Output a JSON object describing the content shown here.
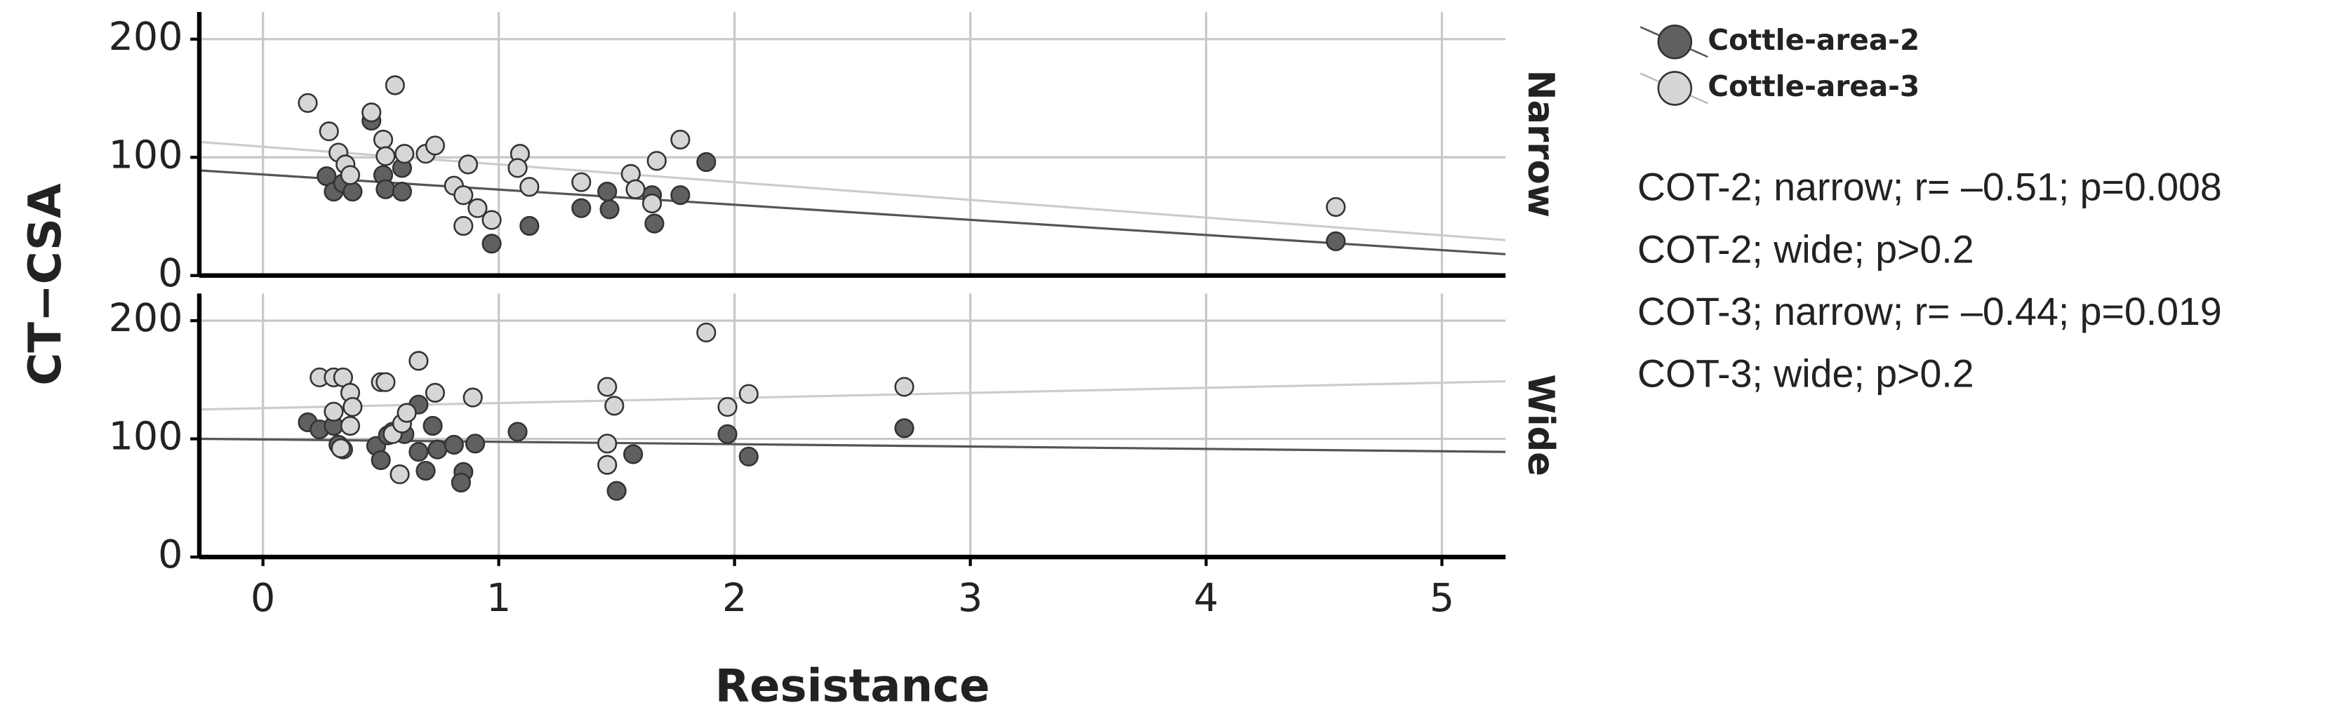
{
  "chart_data": {
    "type": "scatter",
    "xlabel": "Resistance",
    "ylabel": "CT−CSA",
    "facets": [
      "Narrow",
      "Wide"
    ],
    "xlim": [
      -0.27,
      5.27
    ],
    "xticks": [
      0,
      1,
      2,
      3,
      4,
      5
    ],
    "ylim": [
      0,
      223
    ],
    "yticks": [
      0,
      100,
      200
    ],
    "grid": true,
    "series": [
      {
        "name": "Cottle-area-2",
        "color": "#606060",
        "line_color": "#555555",
        "x": [
          [
            0.27,
            0.3,
            0.34,
            0.38,
            0.46,
            0.51,
            0.52,
            0.59,
            0.59,
            0.97,
            1.13,
            1.35,
            1.46,
            1.47,
            1.65,
            1.66,
            1.77,
            1.88,
            4.55
          ],
          [
            0.19,
            0.24,
            0.3,
            0.32,
            0.34,
            0.48,
            0.5,
            0.53,
            0.55,
            0.6,
            0.66,
            0.66,
            0.69,
            0.72,
            0.74,
            0.81,
            0.85,
            0.84,
            0.9,
            1.08,
            1.5,
            1.57,
            1.97,
            2.06,
            2.72
          ]
        ],
        "y": [
          [
            84,
            71,
            78,
            71,
            131,
            85,
            73,
            71,
            91,
            27,
            42,
            57,
            71,
            56,
            68,
            44,
            68,
            96,
            29
          ],
          [
            114,
            108,
            111,
            95,
            91,
            94,
            82,
            103,
            106,
            104,
            89,
            129,
            73,
            111,
            91,
            95,
            72,
            63,
            96,
            106,
            56,
            87,
            104,
            85,
            109
          ]
        ],
        "fit": [
          {
            "intercept": 85.5,
            "slope": -12.8
          },
          {
            "intercept": 99.5,
            "slope": -2.0
          }
        ]
      },
      {
        "name": "Cottle-area-3",
        "color": "#d6d6d6",
        "line_color": "#cccccc",
        "x": [
          [
            0.19,
            0.28,
            0.32,
            0.35,
            0.37,
            0.46,
            0.51,
            0.52,
            0.56,
            0.6,
            0.69,
            0.73,
            0.81,
            0.85,
            0.87,
            0.85,
            0.91,
            0.97,
            1.09,
            1.08,
            1.13,
            1.35,
            1.56,
            1.58,
            1.67,
            1.65,
            1.77,
            4.55
          ],
          [
            0.24,
            0.3,
            0.34,
            0.3,
            0.33,
            0.37,
            0.38,
            0.37,
            0.5,
            0.52,
            0.55,
            0.59,
            0.58,
            0.61,
            0.66,
            0.73,
            0.89,
            1.46,
            1.46,
            1.46,
            1.49,
            1.88,
            1.97,
            2.06,
            2.72
          ]
        ],
        "y": [
          [
            146,
            122,
            104,
            94,
            85,
            138,
            115,
            101,
            161,
            103,
            103,
            110,
            76,
            68,
            94,
            42,
            57,
            47,
            103,
            91,
            75,
            79,
            86,
            73,
            97,
            61,
            115,
            58
          ],
          [
            152,
            152,
            152,
            123,
            92,
            139,
            127,
            111,
            148,
            148,
            104,
            113,
            70,
            122,
            166,
            139,
            135,
            144,
            96,
            78,
            128,
            190,
            127,
            138,
            144
          ]
        ],
        "fit": [
          {
            "intercept": 109,
            "slope": -15.0
          },
          {
            "intercept": 126,
            "slope": 4.3
          }
        ]
      }
    ],
    "annotations": [
      "COT-2; narrow; r= –0.51; p=0.008",
      "COT-2; wide; p>0.2",
      "COT-3; narrow; r= –0.44; p=0.019",
      "COT-3; wide; p>0.2"
    ]
  }
}
